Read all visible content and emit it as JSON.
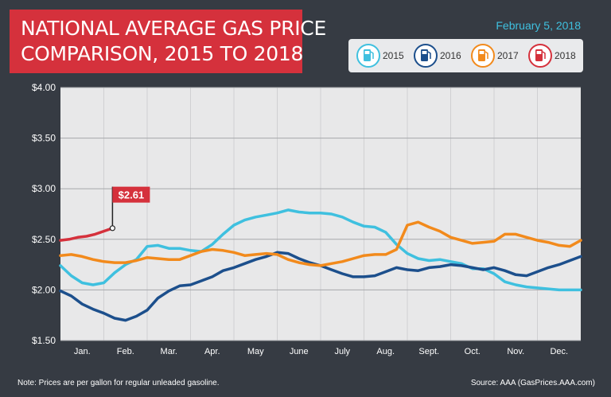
{
  "title": {
    "line1": "NATIONAL AVERAGE GAS PRICE",
    "line2": "COMPARISON, 2015 TO 2018"
  },
  "date": "February 5, 2018",
  "note": "Note: Prices are per gallon for regular unleaded gasoline.",
  "source": "Source: AAA (GasPrices.AAA.com)",
  "legend": [
    {
      "label": "2015",
      "color": "#3fc0df",
      "icon": "gas-pump-icon"
    },
    {
      "label": "2016",
      "color": "#1c4f8c",
      "icon": "gas-pump-icon"
    },
    {
      "label": "2017",
      "color": "#f28a1c",
      "icon": "gas-pump-icon"
    },
    {
      "label": "2018",
      "color": "#d5313c",
      "icon": "gas-pump-icon"
    }
  ],
  "chart_data": {
    "type": "line",
    "ylim": [
      1.5,
      4.0
    ],
    "yticks": [
      {
        "value": 4.0,
        "label": "$4.00"
      },
      {
        "value": 3.5,
        "label": "$3.50"
      },
      {
        "value": 3.0,
        "label": "$3.00"
      },
      {
        "value": 2.5,
        "label": "$2.50"
      },
      {
        "value": 2.0,
        "label": "$2.00"
      },
      {
        "value": 1.5,
        "label": "$1.50"
      }
    ],
    "months": [
      "Jan.",
      "Feb.",
      "Mar.",
      "Apr.",
      "May",
      "June",
      "July",
      "Aug.",
      "Sept.",
      "Oct.",
      "Nov.",
      "Dec."
    ],
    "xlim": [
      0,
      12
    ],
    "grid": "vertical month dividers",
    "annotation": {
      "label": "$2.61",
      "x": 1.2,
      "y": 2.61
    },
    "series": [
      {
        "name": "2015",
        "color": "#3fc0df",
        "points": [
          [
            0,
            2.24
          ],
          [
            0.25,
            2.14
          ],
          [
            0.5,
            2.07
          ],
          [
            0.75,
            2.05
          ],
          [
            1.0,
            2.07
          ],
          [
            1.25,
            2.17
          ],
          [
            1.5,
            2.25
          ],
          [
            1.75,
            2.3
          ],
          [
            2.0,
            2.43
          ],
          [
            2.25,
            2.44
          ],
          [
            2.5,
            2.41
          ],
          [
            2.75,
            2.41
          ],
          [
            3.0,
            2.39
          ],
          [
            3.25,
            2.38
          ],
          [
            3.5,
            2.45
          ],
          [
            3.75,
            2.55
          ],
          [
            4.0,
            2.64
          ],
          [
            4.25,
            2.69
          ],
          [
            4.5,
            2.72
          ],
          [
            4.75,
            2.74
          ],
          [
            5.0,
            2.76
          ],
          [
            5.25,
            2.79
          ],
          [
            5.5,
            2.77
          ],
          [
            5.75,
            2.76
          ],
          [
            6.0,
            2.76
          ],
          [
            6.25,
            2.75
          ],
          [
            6.5,
            2.72
          ],
          [
            6.75,
            2.67
          ],
          [
            7.0,
            2.63
          ],
          [
            7.25,
            2.62
          ],
          [
            7.5,
            2.57
          ],
          [
            7.75,
            2.45
          ],
          [
            8.0,
            2.36
          ],
          [
            8.25,
            2.31
          ],
          [
            8.5,
            2.29
          ],
          [
            8.75,
            2.3
          ],
          [
            9.0,
            2.28
          ],
          [
            9.25,
            2.26
          ],
          [
            9.5,
            2.21
          ],
          [
            9.75,
            2.21
          ],
          [
            10.0,
            2.16
          ],
          [
            10.25,
            2.08
          ],
          [
            10.5,
            2.05
          ],
          [
            10.75,
            2.03
          ],
          [
            11.0,
            2.02
          ],
          [
            11.25,
            2.01
          ],
          [
            11.5,
            2.0
          ],
          [
            11.75,
            2.0
          ],
          [
            12.0,
            2.0
          ]
        ]
      },
      {
        "name": "2016",
        "color": "#1c4f8c",
        "points": [
          [
            0,
            1.99
          ],
          [
            0.25,
            1.94
          ],
          [
            0.5,
            1.86
          ],
          [
            0.75,
            1.81
          ],
          [
            1.0,
            1.77
          ],
          [
            1.25,
            1.72
          ],
          [
            1.5,
            1.7
          ],
          [
            1.75,
            1.74
          ],
          [
            2.0,
            1.8
          ],
          [
            2.25,
            1.92
          ],
          [
            2.5,
            1.99
          ],
          [
            2.75,
            2.04
          ],
          [
            3.0,
            2.05
          ],
          [
            3.25,
            2.09
          ],
          [
            3.5,
            2.13
          ],
          [
            3.75,
            2.19
          ],
          [
            4.0,
            2.22
          ],
          [
            4.25,
            2.26
          ],
          [
            4.5,
            2.3
          ],
          [
            4.75,
            2.33
          ],
          [
            5.0,
            2.37
          ],
          [
            5.25,
            2.36
          ],
          [
            5.5,
            2.31
          ],
          [
            5.75,
            2.27
          ],
          [
            6.0,
            2.24
          ],
          [
            6.25,
            2.2
          ],
          [
            6.5,
            2.16
          ],
          [
            6.75,
            2.13
          ],
          [
            7.0,
            2.13
          ],
          [
            7.25,
            2.14
          ],
          [
            7.5,
            2.18
          ],
          [
            7.75,
            2.22
          ],
          [
            8.0,
            2.2
          ],
          [
            8.25,
            2.19
          ],
          [
            8.5,
            2.22
          ],
          [
            8.75,
            2.23
          ],
          [
            9.0,
            2.25
          ],
          [
            9.25,
            2.24
          ],
          [
            9.5,
            2.22
          ],
          [
            9.75,
            2.2
          ],
          [
            10.0,
            2.22
          ],
          [
            10.25,
            2.19
          ],
          [
            10.5,
            2.15
          ],
          [
            10.75,
            2.14
          ],
          [
            11.0,
            2.18
          ],
          [
            11.25,
            2.22
          ],
          [
            11.5,
            2.25
          ],
          [
            11.75,
            2.29
          ],
          [
            12.0,
            2.33
          ]
        ]
      },
      {
        "name": "2017",
        "color": "#f28a1c",
        "points": [
          [
            0,
            2.34
          ],
          [
            0.25,
            2.35
          ],
          [
            0.5,
            2.33
          ],
          [
            0.75,
            2.3
          ],
          [
            1.0,
            2.28
          ],
          [
            1.25,
            2.27
          ],
          [
            1.5,
            2.27
          ],
          [
            1.75,
            2.29
          ],
          [
            2.0,
            2.32
          ],
          [
            2.25,
            2.31
          ],
          [
            2.5,
            2.3
          ],
          [
            2.75,
            2.3
          ],
          [
            3.0,
            2.34
          ],
          [
            3.25,
            2.38
          ],
          [
            3.5,
            2.4
          ],
          [
            3.75,
            2.39
          ],
          [
            4.0,
            2.37
          ],
          [
            4.25,
            2.34
          ],
          [
            4.5,
            2.35
          ],
          [
            4.75,
            2.36
          ],
          [
            5.0,
            2.35
          ],
          [
            5.25,
            2.3
          ],
          [
            5.5,
            2.27
          ],
          [
            5.75,
            2.25
          ],
          [
            6.0,
            2.24
          ],
          [
            6.25,
            2.26
          ],
          [
            6.5,
            2.28
          ],
          [
            6.75,
            2.31
          ],
          [
            7.0,
            2.34
          ],
          [
            7.25,
            2.35
          ],
          [
            7.5,
            2.35
          ],
          [
            7.75,
            2.4
          ],
          [
            8.0,
            2.64
          ],
          [
            8.25,
            2.67
          ],
          [
            8.5,
            2.62
          ],
          [
            8.75,
            2.58
          ],
          [
            9.0,
            2.52
          ],
          [
            9.25,
            2.49
          ],
          [
            9.5,
            2.46
          ],
          [
            9.75,
            2.47
          ],
          [
            10.0,
            2.48
          ],
          [
            10.25,
            2.55
          ],
          [
            10.5,
            2.55
          ],
          [
            10.75,
            2.52
          ],
          [
            11.0,
            2.49
          ],
          [
            11.25,
            2.47
          ],
          [
            11.5,
            2.44
          ],
          [
            11.75,
            2.43
          ],
          [
            12.0,
            2.49
          ]
        ]
      },
      {
        "name": "2018",
        "color": "#d5313c",
        "points": [
          [
            0,
            2.49
          ],
          [
            0.2,
            2.5
          ],
          [
            0.4,
            2.52
          ],
          [
            0.6,
            2.53
          ],
          [
            0.8,
            2.55
          ],
          [
            1.0,
            2.58
          ],
          [
            1.2,
            2.61
          ]
        ]
      }
    ]
  }
}
